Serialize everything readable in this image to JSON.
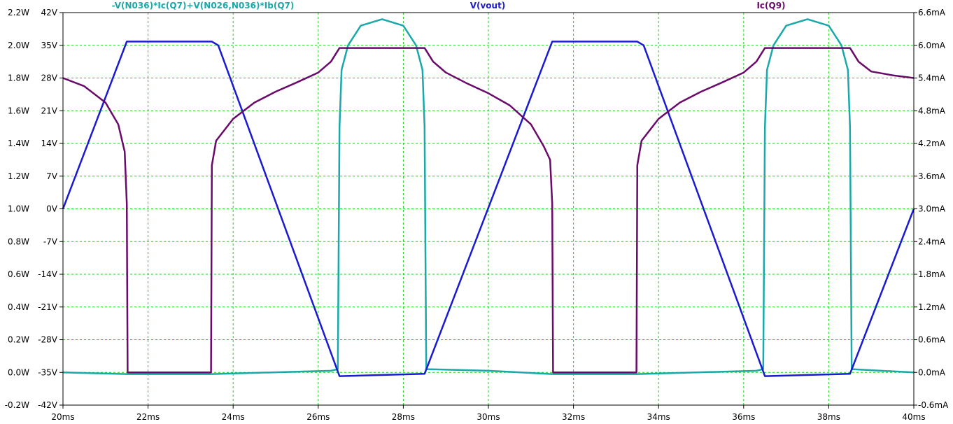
{
  "chart_data": {
    "type": "line",
    "title": "",
    "legend_placement": "top",
    "grid": true,
    "x": {
      "label": "",
      "range_ms": [
        20,
        40
      ],
      "ticks": [
        20,
        22,
        24,
        26,
        28,
        30,
        32,
        34,
        36,
        38,
        40
      ],
      "tick_labels": [
        "20ms",
        "22ms",
        "24ms",
        "26ms",
        "28ms",
        "30ms",
        "32ms",
        "34ms",
        "36ms",
        "38ms",
        "40ms"
      ]
    },
    "axes": {
      "left_power": {
        "range": [
          -0.2,
          2.2
        ],
        "tick_labels": [
          "2.2W",
          "2.0W",
          "1.8W",
          "1.6W",
          "1.4W",
          "1.2W",
          "1.0W",
          "0.8W",
          "0.6W",
          "0.4W",
          "0.2W",
          "0.0W",
          "-0.2W"
        ]
      },
      "left_voltage": {
        "range": [
          -42,
          42
        ],
        "tick_labels": [
          "42V",
          "35V",
          "28V",
          "21V",
          "14V",
          "7V",
          "0V",
          "-7V",
          "-14V",
          "-21V",
          "-28V",
          "-35V",
          "-42V"
        ]
      },
      "right_current": {
        "range": [
          -0.6,
          6.6
        ],
        "unit": "mA",
        "tick_labels": [
          "6.6mA",
          "6.0mA",
          "5.4mA",
          "4.8mA",
          "4.2mA",
          "3.6mA",
          "3.0mA",
          "2.4mA",
          "1.8mA",
          "1.2mA",
          "0.6mA",
          "0.0mA",
          "-0.6mA"
        ]
      }
    },
    "series": [
      {
        "name": "-V(N036)*Ic(Q7)+V(N026,N036)*Ib(Q7)",
        "axis": "left_power",
        "color": "#1aa8a8",
        "points": [
          [
            20,
            0.0
          ],
          [
            21.5,
            -0.01
          ],
          [
            23.5,
            -0.01
          ],
          [
            26.3,
            0.01
          ],
          [
            26.46,
            0.02
          ],
          [
            26.5,
            1.5
          ],
          [
            26.55,
            1.85
          ],
          [
            26.7,
            2.0
          ],
          [
            27.0,
            2.12
          ],
          [
            27.5,
            2.16
          ],
          [
            28.0,
            2.12
          ],
          [
            28.3,
            2.0
          ],
          [
            28.45,
            1.85
          ],
          [
            28.5,
            1.5
          ],
          [
            28.54,
            0.02
          ],
          [
            30.0,
            0.01
          ],
          [
            31.5,
            -0.01
          ],
          [
            33.5,
            -0.01
          ],
          [
            36.3,
            0.01
          ],
          [
            36.46,
            0.02
          ],
          [
            36.5,
            1.5
          ],
          [
            36.55,
            1.85
          ],
          [
            36.7,
            2.0
          ],
          [
            37.0,
            2.12
          ],
          [
            37.5,
            2.16
          ],
          [
            38.0,
            2.12
          ],
          [
            38.3,
            2.0
          ],
          [
            38.45,
            1.85
          ],
          [
            38.5,
            1.5
          ],
          [
            38.54,
            0.02
          ],
          [
            40,
            0.0
          ]
        ]
      },
      {
        "name": "V(vout)",
        "axis": "left_voltage",
        "color": "#1a1ad0",
        "points": [
          [
            20,
            0
          ],
          [
            21.5,
            35.8
          ],
          [
            23.5,
            35.8
          ],
          [
            23.65,
            35.0
          ],
          [
            26.5,
            -35.8
          ],
          [
            28.5,
            -35.3
          ],
          [
            31.5,
            35.8
          ],
          [
            33.5,
            35.8
          ],
          [
            33.65,
            35.0
          ],
          [
            36.5,
            -35.8
          ],
          [
            38.5,
            -35.3
          ],
          [
            40,
            0
          ]
        ]
      },
      {
        "name": "Ic(Q9)",
        "axis": "right_current",
        "color": "#6a0a6a",
        "points": [
          [
            20,
            5.4
          ],
          [
            20.5,
            5.25
          ],
          [
            21.0,
            4.95
          ],
          [
            21.3,
            4.55
          ],
          [
            21.45,
            4.05
          ],
          [
            21.5,
            3.1
          ],
          [
            21.52,
            0.0
          ],
          [
            23.48,
            0.0
          ],
          [
            23.5,
            3.8
          ],
          [
            23.6,
            4.25
          ],
          [
            24.0,
            4.65
          ],
          [
            24.5,
            4.95
          ],
          [
            25.0,
            5.15
          ],
          [
            25.5,
            5.32
          ],
          [
            26.0,
            5.5
          ],
          [
            26.3,
            5.7
          ],
          [
            26.5,
            5.95
          ],
          [
            28.5,
            5.95
          ],
          [
            28.7,
            5.7
          ],
          [
            29.0,
            5.5
          ],
          [
            29.5,
            5.3
          ],
          [
            30.0,
            5.12
          ],
          [
            30.5,
            4.9
          ],
          [
            31.0,
            4.55
          ],
          [
            31.3,
            4.15
          ],
          [
            31.45,
            3.9
          ],
          [
            31.5,
            3.1
          ],
          [
            31.52,
            0.0
          ],
          [
            33.48,
            0.0
          ],
          [
            33.5,
            3.8
          ],
          [
            33.6,
            4.25
          ],
          [
            34.0,
            4.65
          ],
          [
            34.5,
            4.95
          ],
          [
            35.0,
            5.15
          ],
          [
            35.5,
            5.32
          ],
          [
            36.0,
            5.5
          ],
          [
            36.3,
            5.7
          ],
          [
            36.5,
            5.95
          ],
          [
            38.5,
            5.95
          ],
          [
            38.7,
            5.7
          ],
          [
            39.0,
            5.52
          ],
          [
            39.5,
            5.45
          ],
          [
            40,
            5.4
          ]
        ]
      }
    ]
  }
}
